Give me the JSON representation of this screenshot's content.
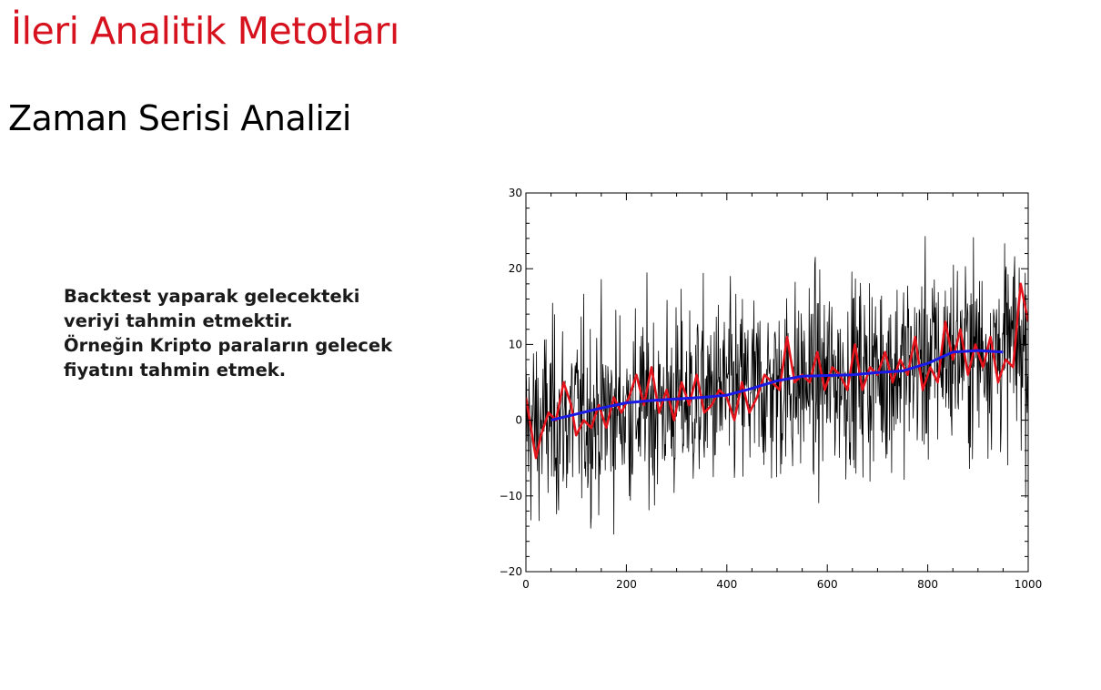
{
  "header": {
    "title": "İleri Analitik Metotları",
    "subtitle": "Zaman Serisi Analizi"
  },
  "content": {
    "lines": [
      "Backtest yaparak gelecekteki",
      "veriyi tahmin etmektir.",
      "Örneğin Kripto paraların gelecek",
      "fiyatını tahmin etmek."
    ]
  },
  "colors": {
    "title": "#d7121f",
    "noise_series": "#000000",
    "smoothed_series": "#e3141c",
    "trend_series": "#1a1ae6"
  },
  "chart_data": {
    "type": "line",
    "title": "",
    "xlabel": "",
    "ylabel": "",
    "xlim": [
      0,
      1000
    ],
    "ylim": [
      -20,
      30
    ],
    "x_ticks": [
      0,
      200,
      400,
      600,
      800,
      1000
    ],
    "y_ticks": [
      -20,
      -10,
      0,
      10,
      20,
      30
    ],
    "grid": false,
    "legend": "none",
    "series": [
      {
        "role": "noise",
        "color": "#000000",
        "x": [
          0,
          50,
          100,
          150,
          200,
          250,
          300,
          350,
          400,
          450,
          500,
          550,
          600,
          650,
          700,
          750,
          800,
          850,
          900,
          950,
          1000
        ],
        "y": [
          -1,
          0,
          0.5,
          1,
          1.5,
          2,
          2.5,
          3,
          3.5,
          4,
          4.5,
          5,
          5.5,
          6,
          6.5,
          7,
          8,
          9,
          9.3,
          9.5,
          10
        ],
        "spread": 9
      },
      {
        "role": "smoothed",
        "color": "#e3141c",
        "x": [
          0,
          10,
          20,
          30,
          45,
          60,
          75,
          90,
          100,
          115,
          130,
          145,
          160,
          175,
          190,
          205,
          220,
          235,
          250,
          265,
          280,
          295,
          310,
          325,
          340,
          355,
          370,
          385,
          400,
          415,
          430,
          445,
          460,
          475,
          490,
          505,
          520,
          535,
          550,
          565,
          580,
          595,
          610,
          625,
          640,
          655,
          670,
          685,
          700,
          715,
          730,
          745,
          760,
          775,
          790,
          805,
          820,
          835,
          850,
          865,
          880,
          895,
          910,
          925,
          940,
          955,
          970,
          985,
          1000
        ],
        "y": [
          3,
          -1,
          -5,
          -2,
          1,
          0,
          5,
          2,
          -2,
          0,
          -1,
          2,
          -1,
          3,
          1,
          3,
          6,
          2,
          7,
          1,
          4,
          0,
          5,
          2,
          6,
          1,
          2,
          4,
          3,
          0,
          5,
          1,
          3,
          6,
          5,
          4,
          11,
          5,
          6,
          5,
          9,
          4,
          7,
          6,
          4,
          10,
          4,
          7,
          6,
          9,
          5,
          8,
          6,
          11,
          4,
          7,
          5,
          13,
          8,
          12,
          6,
          10,
          7,
          11,
          5,
          8,
          7,
          18,
          13
        ]
      },
      {
        "role": "trend",
        "color": "#1a1ae6",
        "x": [
          50,
          100,
          150,
          200,
          250,
          300,
          350,
          400,
          450,
          500,
          550,
          600,
          650,
          700,
          750,
          800,
          850,
          900,
          950
        ],
        "y": [
          0,
          0.8,
          1.6,
          2.3,
          2.6,
          2.8,
          3.0,
          3.3,
          4.2,
          5.2,
          5.8,
          5.9,
          6.0,
          6.3,
          6.5,
          7.5,
          9.0,
          9.2,
          9.0
        ]
      }
    ]
  }
}
